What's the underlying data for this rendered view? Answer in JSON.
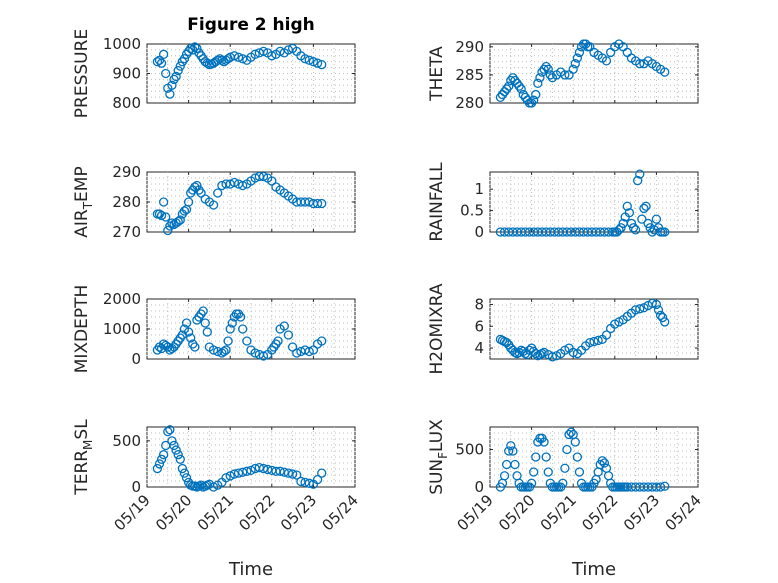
{
  "figure": {
    "title": "Figure 2 high",
    "x_ticks": [
      "05/19",
      "05/20",
      "05/21",
      "05/22",
      "05/23",
      "05/24"
    ],
    "xlabel": "Time",
    "marker_color": "#0072BD"
  },
  "chart_data": [
    {
      "type": "scatter",
      "id": "pressure",
      "ylabel": "PRESSURE",
      "ylim": [
        800,
        1000
      ],
      "yticks": [
        800,
        900,
        1000
      ],
      "x_range_days": [
        0,
        5
      ],
      "x": [
        0.25,
        0.3,
        0.35,
        0.4,
        0.45,
        0.5,
        0.55,
        0.6,
        0.65,
        0.7,
        0.75,
        0.8,
        0.85,
        0.9,
        0.95,
        1.0,
        1.05,
        1.1,
        1.15,
        1.2,
        1.25,
        1.3,
        1.35,
        1.4,
        1.45,
        1.5,
        1.55,
        1.6,
        1.65,
        1.7,
        1.75,
        1.8,
        1.85,
        1.9,
        1.95,
        2.0,
        2.1,
        2.2,
        2.3,
        2.4,
        2.5,
        2.6,
        2.7,
        2.8,
        2.9,
        3.0,
        3.1,
        3.2,
        3.3,
        3.4,
        3.5,
        3.6,
        3.7,
        3.8,
        3.9,
        4.0,
        4.1,
        4.2
      ],
      "y": [
        940,
        945,
        935,
        965,
        900,
        850,
        830,
        860,
        880,
        890,
        910,
        925,
        940,
        950,
        965,
        975,
        985,
        980,
        990,
        985,
        970,
        960,
        950,
        940,
        935,
        930,
        932,
        935,
        940,
        945,
        950,
        945,
        940,
        945,
        950,
        955,
        960,
        955,
        950,
        945,
        955,
        965,
        970,
        975,
        970,
        960,
        965,
        975,
        970,
        980,
        985,
        975,
        960,
        950,
        945,
        940,
        935,
        930
      ]
    },
    {
      "type": "scatter",
      "id": "theta",
      "ylabel": "THETA",
      "ylim": [
        280,
        290.5
      ],
      "yticks": [
        280,
        285,
        290
      ],
      "x_range_days": [
        0,
        5
      ],
      "x": [
        0.25,
        0.3,
        0.35,
        0.4,
        0.45,
        0.5,
        0.55,
        0.6,
        0.65,
        0.7,
        0.75,
        0.8,
        0.85,
        0.9,
        0.95,
        1.0,
        1.05,
        1.1,
        1.15,
        1.2,
        1.25,
        1.3,
        1.35,
        1.4,
        1.45,
        1.5,
        1.6,
        1.7,
        1.8,
        1.9,
        2.0,
        2.05,
        2.1,
        2.15,
        2.2,
        2.25,
        2.3,
        2.35,
        2.4,
        2.5,
        2.6,
        2.7,
        2.8,
        2.9,
        3.0,
        3.1,
        3.2,
        3.3,
        3.4,
        3.5,
        3.6,
        3.7,
        3.8,
        3.9,
        4.0,
        4.1,
        4.2
      ],
      "y": [
        281,
        281.5,
        282,
        282.5,
        283,
        284,
        284.5,
        284,
        283.5,
        283,
        282.5,
        281.5,
        281,
        280.5,
        280,
        280,
        280.5,
        281.5,
        283.5,
        284.5,
        285.5,
        286,
        286.5,
        286,
        285,
        284.5,
        285,
        285.5,
        285,
        285,
        286,
        287,
        288,
        289,
        290,
        290.5,
        290.5,
        290,
        290,
        289,
        288.5,
        288,
        287.5,
        289,
        290,
        290.5,
        290,
        289,
        288,
        287.5,
        287,
        287,
        287.5,
        287,
        286.5,
        286,
        285.5
      ]
    },
    {
      "type": "scatter",
      "id": "air_temp",
      "ylabel": "AIR_TEMP",
      "ylim": [
        270,
        290
      ],
      "yticks": [
        270,
        280,
        290
      ],
      "x_range_days": [
        0,
        5
      ],
      "x": [
        0.25,
        0.3,
        0.35,
        0.4,
        0.45,
        0.5,
        0.55,
        0.6,
        0.65,
        0.7,
        0.75,
        0.8,
        0.85,
        0.9,
        0.95,
        1.0,
        1.05,
        1.1,
        1.15,
        1.2,
        1.25,
        1.3,
        1.4,
        1.5,
        1.6,
        1.7,
        1.8,
        1.9,
        2.0,
        2.1,
        2.2,
        2.3,
        2.4,
        2.5,
        2.6,
        2.7,
        2.8,
        2.9,
        3.0,
        3.1,
        3.2,
        3.3,
        3.4,
        3.5,
        3.6,
        3.7,
        3.8,
        3.9,
        4.0,
        4.1,
        4.2
      ],
      "y": [
        276,
        276,
        275.5,
        280,
        275,
        270.5,
        272,
        273,
        272.5,
        273,
        273.5,
        274,
        276,
        277,
        277.5,
        280,
        283,
        284,
        285,
        285.5,
        284,
        283,
        281,
        280,
        279,
        283,
        285.5,
        286,
        286,
        286.5,
        286,
        285.5,
        286,
        287,
        288,
        288.5,
        288.5,
        288,
        287,
        285,
        284,
        283,
        282,
        281,
        280,
        280,
        280,
        280,
        279.5,
        279.5,
        279.5
      ]
    },
    {
      "type": "scatter",
      "id": "rainfall",
      "ylabel": "RAINFALL",
      "ylim": [
        0,
        1.4
      ],
      "yticks": [
        0,
        0.5,
        1
      ],
      "x_range_days": [
        0,
        5
      ],
      "x": [
        0.25,
        0.35,
        0.45,
        0.55,
        0.65,
        0.75,
        0.85,
        0.95,
        1.05,
        1.15,
        1.25,
        1.35,
        1.45,
        1.55,
        1.65,
        1.75,
        1.85,
        1.95,
        2.05,
        2.15,
        2.25,
        2.35,
        2.45,
        2.55,
        2.65,
        2.75,
        2.85,
        2.95,
        3.0,
        3.05,
        3.1,
        3.15,
        3.2,
        3.25,
        3.3,
        3.35,
        3.4,
        3.45,
        3.5,
        3.55,
        3.6,
        3.65,
        3.7,
        3.75,
        3.8,
        3.85,
        3.9,
        3.95,
        4.0,
        4.05,
        4.1,
        4.15,
        4.2
      ],
      "y": [
        0,
        0,
        0,
        0,
        0,
        0,
        0,
        0,
        0,
        0,
        0,
        0,
        0,
        0,
        0,
        0,
        0,
        0,
        0,
        0,
        0,
        0,
        0,
        0,
        0,
        0,
        0,
        0,
        0,
        0,
        0.05,
        0.1,
        0.2,
        0.35,
        0.6,
        0.45,
        0.2,
        0.1,
        0.05,
        1.2,
        1.35,
        0.3,
        0.55,
        0.6,
        0.2,
        0.1,
        0,
        0.05,
        0.3,
        0.1,
        0,
        0,
        0
      ]
    },
    {
      "type": "scatter",
      "id": "mixdepth",
      "ylabel": "MIXDEPTH",
      "ylim": [
        0,
        2000
      ],
      "yticks": [
        0,
        1000,
        2000
      ],
      "x_range_days": [
        0,
        5
      ],
      "x": [
        0.25,
        0.3,
        0.35,
        0.4,
        0.45,
        0.5,
        0.55,
        0.6,
        0.65,
        0.7,
        0.75,
        0.8,
        0.85,
        0.9,
        0.95,
        1.0,
        1.05,
        1.1,
        1.15,
        1.2,
        1.25,
        1.3,
        1.35,
        1.4,
        1.45,
        1.5,
        1.6,
        1.7,
        1.8,
        1.85,
        1.9,
        1.95,
        2.0,
        2.05,
        2.1,
        2.15,
        2.2,
        2.25,
        2.3,
        2.4,
        2.5,
        2.6,
        2.7,
        2.8,
        2.9,
        3.0,
        3.05,
        3.1,
        3.15,
        3.2,
        3.3,
        3.4,
        3.5,
        3.6,
        3.7,
        3.8,
        3.9,
        4.0,
        4.1,
        4.2
      ],
      "y": [
        300,
        400,
        350,
        500,
        450,
        400,
        300,
        350,
        400,
        500,
        600,
        700,
        800,
        1000,
        1200,
        900,
        700,
        500,
        400,
        1300,
        1400,
        1500,
        1600,
        1200,
        900,
        400,
        300,
        250,
        200,
        250,
        300,
        600,
        1000,
        1200,
        1400,
        1500,
        1500,
        1400,
        1000,
        600,
        300,
        200,
        150,
        100,
        150,
        300,
        400,
        500,
        600,
        1000,
        1100,
        800,
        400,
        200,
        250,
        300,
        250,
        300,
        500,
        600
      ]
    },
    {
      "type": "scatter",
      "id": "h2omixra",
      "ylabel": "H2OMIXRA",
      "ylim": [
        3,
        8.5
      ],
      "yticks": [
        4,
        6,
        8
      ],
      "x_range_days": [
        0,
        5
      ],
      "x": [
        0.25,
        0.3,
        0.35,
        0.4,
        0.45,
        0.5,
        0.55,
        0.6,
        0.65,
        0.7,
        0.75,
        0.8,
        0.85,
        0.9,
        0.95,
        1.0,
        1.05,
        1.1,
        1.15,
        1.2,
        1.25,
        1.3,
        1.4,
        1.5,
        1.6,
        1.7,
        1.8,
        1.9,
        2.0,
        2.1,
        2.2,
        2.3,
        2.4,
        2.5,
        2.6,
        2.7,
        2.8,
        2.9,
        3.0,
        3.1,
        3.2,
        3.3,
        3.4,
        3.5,
        3.6,
        3.7,
        3.8,
        3.9,
        4.0,
        4.05,
        4.1,
        4.15,
        4.2
      ],
      "y": [
        4.8,
        4.7,
        4.6,
        4.5,
        4.3,
        4.0,
        3.8,
        3.6,
        3.5,
        3.6,
        3.8,
        3.7,
        3.5,
        3.4,
        3.8,
        4.0,
        3.7,
        3.5,
        3.3,
        3.4,
        3.5,
        3.6,
        3.4,
        3.2,
        3.3,
        3.5,
        3.8,
        4.0,
        3.6,
        3.5,
        3.8,
        4.2,
        4.5,
        4.6,
        4.7,
        4.8,
        5.2,
        5.8,
        6.2,
        6.4,
        6.6,
        6.9,
        7.2,
        7.5,
        7.6,
        7.7,
        7.9,
        8.1,
        8.0,
        7.5,
        7.0,
        6.8,
        6.4
      ]
    },
    {
      "type": "scatter",
      "id": "terr_msl",
      "ylabel": "TERR_MSL",
      "ylim": [
        0,
        650
      ],
      "yticks": [
        0,
        500
      ],
      "x_range_days": [
        0,
        5
      ],
      "x": [
        0.25,
        0.3,
        0.35,
        0.4,
        0.45,
        0.5,
        0.55,
        0.6,
        0.65,
        0.7,
        0.75,
        0.8,
        0.85,
        0.9,
        0.95,
        1.0,
        1.05,
        1.1,
        1.15,
        1.2,
        1.25,
        1.3,
        1.35,
        1.4,
        1.45,
        1.5,
        1.6,
        1.7,
        1.8,
        1.9,
        2.0,
        2.1,
        2.2,
        2.3,
        2.4,
        2.5,
        2.6,
        2.7,
        2.8,
        2.9,
        3.0,
        3.1,
        3.2,
        3.3,
        3.4,
        3.5,
        3.6,
        3.7,
        3.8,
        3.9,
        4.0,
        4.1,
        4.2
      ],
      "y": [
        200,
        250,
        300,
        350,
        450,
        600,
        620,
        500,
        450,
        400,
        350,
        300,
        200,
        150,
        100,
        50,
        20,
        10,
        10,
        0,
        10,
        20,
        0,
        10,
        20,
        30,
        0,
        20,
        50,
        100,
        120,
        140,
        150,
        160,
        170,
        180,
        200,
        210,
        200,
        190,
        180,
        170,
        170,
        160,
        150,
        140,
        130,
        60,
        50,
        40,
        30,
        80,
        150
      ]
    },
    {
      "type": "scatter",
      "id": "sun_flux",
      "ylabel": "SUN_FLUX",
      "ylim": [
        0,
        800
      ],
      "yticks": [
        0,
        500
      ],
      "x_range_days": [
        0,
        5
      ],
      "x": [
        0.25,
        0.3,
        0.35,
        0.4,
        0.45,
        0.5,
        0.55,
        0.6,
        0.65,
        0.7,
        0.75,
        0.8,
        0.85,
        0.9,
        0.95,
        1.0,
        1.05,
        1.1,
        1.15,
        1.2,
        1.25,
        1.3,
        1.35,
        1.4,
        1.45,
        1.5,
        1.55,
        1.6,
        1.65,
        1.7,
        1.75,
        1.8,
        1.85,
        1.9,
        1.95,
        2.0,
        2.05,
        2.1,
        2.15,
        2.2,
        2.25,
        2.3,
        2.35,
        2.4,
        2.45,
        2.5,
        2.55,
        2.6,
        2.65,
        2.7,
        2.75,
        2.8,
        2.85,
        2.9,
        2.95,
        3.0,
        3.05,
        3.1,
        3.15,
        3.2,
        3.25,
        3.3,
        3.4,
        3.5,
        3.6,
        3.7,
        3.8,
        3.9,
        4.0,
        4.1,
        4.2
      ],
      "y": [
        0,
        50,
        150,
        300,
        480,
        550,
        480,
        300,
        150,
        50,
        0,
        0,
        0,
        0,
        0,
        50,
        200,
        400,
        600,
        650,
        650,
        600,
        400,
        200,
        50,
        0,
        0,
        0,
        0,
        0,
        50,
        250,
        500,
        700,
        730,
        700,
        600,
        400,
        200,
        50,
        0,
        0,
        0,
        0,
        0,
        50,
        100,
        200,
        300,
        350,
        320,
        250,
        150,
        50,
        0,
        0,
        0,
        0,
        0,
        0,
        0,
        0,
        0,
        0,
        0,
        0,
        0,
        0,
        0,
        0,
        10
      ]
    }
  ]
}
